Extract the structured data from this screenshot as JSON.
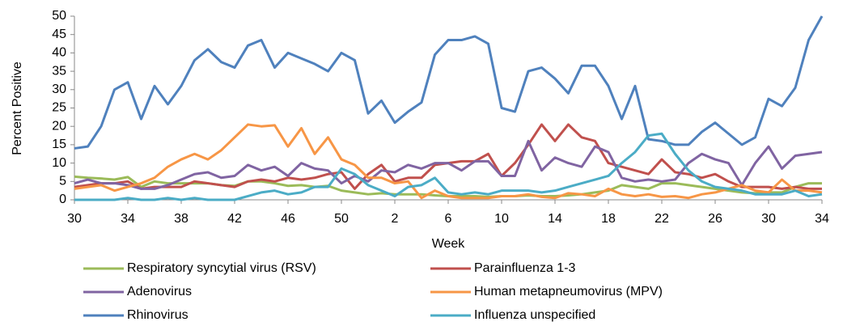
{
  "chart_data": {
    "type": "line",
    "y_label": "Percent Positive",
    "x_label": "Week",
    "categories": [
      "30",
      null,
      null,
      null,
      "34",
      null,
      null,
      null,
      "38",
      null,
      null,
      null,
      "42",
      null,
      null,
      null,
      "46",
      null,
      null,
      null,
      "50",
      null,
      null,
      null,
      "2",
      null,
      null,
      null,
      "6",
      null,
      null,
      null,
      "10",
      null,
      null,
      null,
      "14",
      null,
      null,
      null,
      "18",
      null,
      null,
      null,
      "22",
      null,
      null,
      null,
      "26",
      null,
      null,
      null,
      "30",
      null,
      null,
      null,
      "34"
    ],
    "ylim": [
      0,
      50
    ],
    "yticks": [
      0,
      5,
      10,
      15,
      20,
      25,
      30,
      35,
      40,
      45,
      50
    ],
    "series": [
      {
        "name": "Respiratory syncytial virus (RSV)",
        "color": "#9bbb59",
        "values": [
          6.3,
          6,
          5.8,
          5.5,
          6.2,
          3.5,
          5,
          4.5,
          4.5,
          4.5,
          4.5,
          4,
          3.8,
          5,
          5,
          4.5,
          3.8,
          4,
          3.5,
          3.8,
          2.5,
          2,
          1.5,
          1.8,
          1.5,
          1.5,
          1.5,
          1.2,
          1,
          1,
          1,
          0.8,
          1,
          1,
          1.2,
          1,
          1,
          1.2,
          1.5,
          2,
          2.5,
          4,
          3.5,
          3,
          4.5,
          4.5,
          4,
          3.5,
          3,
          2.5,
          2,
          1.8,
          2,
          2,
          3.5,
          4.5,
          4.5
        ]
      },
      {
        "name": "Parainfluenza 1-3",
        "color": "#c0504d",
        "values": [
          3.5,
          4,
          4.5,
          4.5,
          5,
          3,
          3.5,
          3.5,
          3.5,
          5,
          4.5,
          4,
          3.5,
          5,
          5.5,
          5,
          6,
          5.5,
          6,
          7,
          7.5,
          3,
          7,
          9.5,
          5,
          6,
          6,
          9.5,
          10,
          10.5,
          10.5,
          12.5,
          6.5,
          10,
          15,
          20.5,
          16,
          20.5,
          17,
          16,
          10,
          9,
          8,
          7,
          11,
          7.5,
          7,
          6,
          7,
          5,
          3.5,
          3.5,
          3.5,
          3,
          3.5,
          3,
          3
        ]
      },
      {
        "name": "Adenovirus",
        "color": "#8064a2",
        "values": [
          4.5,
          5.5,
          4.5,
          4.5,
          4,
          3,
          3,
          4,
          5.5,
          7,
          7.5,
          6,
          6.5,
          9.5,
          8,
          9,
          6.5,
          10,
          8.5,
          8,
          4.5,
          6.5,
          5,
          8,
          7.5,
          9.5,
          8.5,
          10,
          10,
          8,
          10.5,
          10.5,
          6.5,
          6.5,
          16,
          8,
          11.5,
          10,
          9,
          14.5,
          13,
          6,
          5,
          5.5,
          5,
          5.5,
          10,
          12.5,
          11,
          10,
          4,
          10,
          14.5,
          8.5,
          12,
          12.5,
          13
        ]
      },
      {
        "name": "Human metapneumovirus (MPV)",
        "color": "#f79646",
        "values": [
          3,
          3.5,
          4,
          2.5,
          3.5,
          4.5,
          6,
          9,
          11,
          12.5,
          11,
          13.5,
          17,
          20.5,
          20,
          20.3,
          14.5,
          19.5,
          12.5,
          17,
          11,
          9.5,
          6,
          6,
          4.5,
          5,
          0.5,
          2.5,
          1,
          0.5,
          0.5,
          0.5,
          1,
          1,
          1.5,
          0.8,
          0.5,
          1.8,
          1.5,
          1,
          3,
          1.5,
          1,
          1.5,
          0.8,
          1,
          0.5,
          1.5,
          2,
          3,
          4,
          2.5,
          2,
          5.5,
          2.5,
          2.5,
          2
        ]
      },
      {
        "name": "Rhinovirus",
        "color": "#4f81bd",
        "values": [
          14,
          14.5,
          20,
          30,
          32,
          22,
          31,
          26,
          31,
          38,
          41,
          37.5,
          36,
          42,
          43.5,
          36,
          40,
          38.5,
          37,
          35,
          40,
          38,
          23.5,
          27,
          21,
          24,
          26.5,
          39.5,
          43.5,
          43.5,
          44.5,
          42.5,
          25,
          24,
          35,
          36,
          33,
          29,
          36.5,
          36.5,
          31,
          22,
          31,
          16.5,
          16,
          15,
          15,
          18.5,
          21,
          18,
          15,
          17,
          27.5,
          25.5,
          30.5,
          43.5,
          50
        ]
      },
      {
        "name": "Influenza unspecified",
        "color": "#4bacc6",
        "values": [
          0,
          0,
          0,
          0,
          0.5,
          0,
          0,
          0.5,
          0,
          0.5,
          0,
          0,
          0,
          1,
          2,
          2.5,
          1.5,
          2,
          3.5,
          3.5,
          8.5,
          7,
          4,
          2.5,
          1,
          3.5,
          4,
          6,
          2,
          1.5,
          2,
          1.5,
          2.5,
          2.5,
          2.5,
          2,
          2.5,
          3.5,
          4.5,
          5.5,
          6.5,
          10,
          13,
          17.5,
          18,
          12.5,
          8,
          5,
          3.5,
          3,
          2.5,
          1.5,
          1.5,
          1.5,
          2.5,
          1,
          1.5
        ]
      }
    ]
  }
}
